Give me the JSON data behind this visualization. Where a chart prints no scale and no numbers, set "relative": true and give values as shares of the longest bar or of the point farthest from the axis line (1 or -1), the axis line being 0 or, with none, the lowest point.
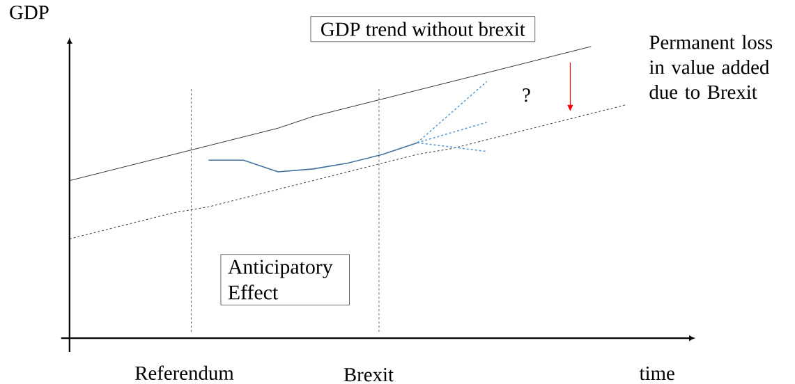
{
  "chart_data": {
    "type": "line",
    "relative": true,
    "xlabel": "time",
    "ylabel": "GDP",
    "marker": "none",
    "categories": [
      null,
      null,
      null,
      null,
      null,
      null,
      null,
      null,
      null,
      null,
      null,
      null,
      null,
      null,
      null,
      null,
      null,
      null,
      null
    ],
    "series": [
      {
        "color": "#000000",
        "line_style": "solid",
        "values": [
          0.54,
          0.57,
          0.6,
          0.63,
          0.66,
          0.69,
          0.72,
          0.76,
          0.79,
          0.82,
          0.85,
          0.88,
          0.91,
          0.94,
          0.97,
          1.0,
          null,
          null,
          null
        ]
      },
      {
        "color": "#000000",
        "line_style": "dashed",
        "values": [
          0.34,
          0.37,
          0.4,
          0.43,
          0.45,
          0.48,
          0.51,
          0.54,
          0.57,
          0.6,
          0.63,
          0.65,
          0.68,
          0.71,
          0.74,
          0.77,
          0.8,
          null,
          null
        ]
      },
      {
        "color": "#41719c",
        "line_style": "solid",
        "values": [
          null,
          null,
          null,
          null,
          0.61,
          0.61,
          0.57,
          0.58,
          0.6,
          0.63,
          0.67,
          null,
          null,
          null,
          null,
          null,
          null,
          null,
          null
        ]
      },
      {
        "color": "#5b9bd5",
        "line_style": "dashed",
        "values": [
          null,
          null,
          null,
          null,
          null,
          null,
          null,
          null,
          null,
          null,
          0.67,
          null,
          0.88,
          null,
          null,
          null,
          null,
          null,
          null
        ]
      },
      {
        "color": "#5b9bd5",
        "line_style": "dashed",
        "values": [
          null,
          null,
          null,
          null,
          null,
          null,
          null,
          null,
          null,
          null,
          0.67,
          null,
          0.74,
          null,
          null,
          null,
          null,
          null,
          null
        ]
      },
      {
        "color": "#5b9bd5",
        "line_style": "dashed",
        "values": [
          null,
          null,
          null,
          null,
          null,
          null,
          null,
          null,
          null,
          null,
          0.67,
          null,
          0.64,
          null,
          null,
          null,
          null,
          null,
          null
        ]
      }
    ],
    "annotations": [
      "GDP trend without brexit",
      "Permanent loss in value added due to Brexit",
      "?",
      "Anticipatory Effect",
      "Referendum",
      "Brexit"
    ]
  }
}
